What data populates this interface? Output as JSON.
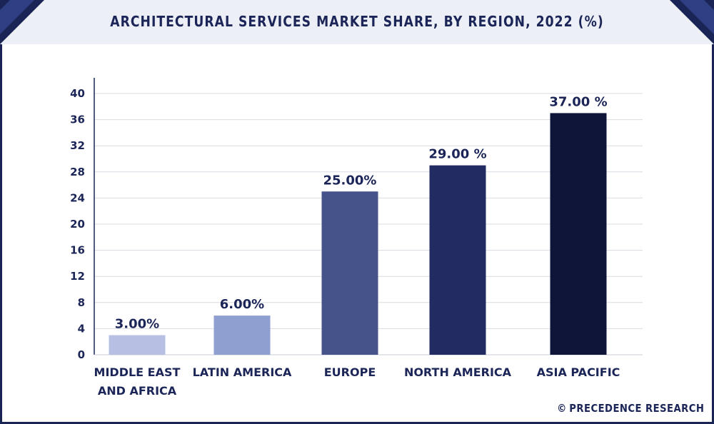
{
  "page": {
    "title": "ARCHITECTURAL SERVICES MARKET SHARE, BY REGION, 2022 (%)",
    "brand_mark": "©",
    "brand": "PRECEDENCE RESEARCH"
  },
  "colors": {
    "frame": "#1a2455",
    "header_bg": "#eceff6",
    "text": "#1b2557",
    "gridline": "#d9dbe3"
  },
  "chart_data": {
    "type": "bar",
    "title": "ARCHITECTURAL SERVICES MARKET SHARE, BY REGION, 2022 (%)",
    "categories": [
      [
        "MIDDLE EAST",
        "AND AFRICA"
      ],
      [
        "LATIN AMERICA"
      ],
      [
        "EUROPE"
      ],
      [
        "NORTH AMERICA"
      ],
      [
        "ASIA PACIFIC"
      ]
    ],
    "values": [
      3,
      6,
      25,
      29,
      37
    ],
    "data_labels": [
      "3.00%",
      "6.00%",
      "25.00%",
      "29.00 %",
      "37.00 %"
    ],
    "bar_colors": [
      "#b7c0e2",
      "#8f9fd0",
      "#46538b",
      "#222c63",
      "#0e1539"
    ],
    "ylim": [
      0,
      40
    ],
    "yticks": [
      0,
      4,
      8,
      12,
      16,
      20,
      24,
      28,
      32,
      36,
      40
    ],
    "grid": true,
    "legend": "none",
    "xlabel": "",
    "ylabel": ""
  }
}
